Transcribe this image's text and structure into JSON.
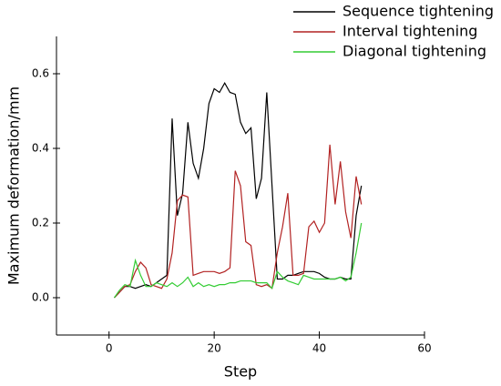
{
  "chart_data": {
    "type": "line",
    "xlabel": "Step",
    "ylabel": "Maximum deformation/mm",
    "x": [
      1,
      2,
      3,
      4,
      5,
      6,
      7,
      8,
      9,
      10,
      11,
      12,
      13,
      14,
      15,
      16,
      17,
      18,
      19,
      20,
      21,
      22,
      23,
      24,
      25,
      26,
      27,
      28,
      29,
      30,
      31,
      32,
      33,
      34,
      35,
      36,
      37,
      38,
      39,
      40,
      41,
      42,
      43,
      44,
      45,
      46,
      47,
      48
    ],
    "series": [
      {
        "name": "Sequence tightening",
        "color": "#000000",
        "values": [
          0,
          0.015,
          0.03,
          0.03,
          0.025,
          0.03,
          0.035,
          0.03,
          0.04,
          0.05,
          0.06,
          0.48,
          0.22,
          0.28,
          0.47,
          0.36,
          0.32,
          0.4,
          0.52,
          0.56,
          0.55,
          0.575,
          0.55,
          0.545,
          0.47,
          0.44,
          0.455,
          0.265,
          0.32,
          0.55,
          0.3,
          0.05,
          0.05,
          0.06,
          0.06,
          0.065,
          0.07,
          0.07,
          0.07,
          0.065,
          0.055,
          0.05,
          0.05,
          0.055,
          0.05,
          0.05,
          0.22,
          0.3
        ]
      },
      {
        "name": "Interval tightening",
        "color": "#b22222",
        "values": [
          0,
          0.015,
          0.03,
          0.035,
          0.07,
          0.095,
          0.08,
          0.035,
          0.03,
          0.025,
          0.05,
          0.12,
          0.26,
          0.275,
          0.27,
          0.06,
          0.065,
          0.07,
          0.07,
          0.07,
          0.065,
          0.07,
          0.08,
          0.34,
          0.3,
          0.15,
          0.14,
          0.035,
          0.03,
          0.035,
          0.025,
          0.12,
          0.19,
          0.28,
          0.06,
          0.06,
          0.065,
          0.19,
          0.205,
          0.175,
          0.2,
          0.41,
          0.25,
          0.365,
          0.23,
          0.16,
          0.325,
          0.25
        ]
      },
      {
        "name": "Diagonal tightening",
        "color": "#33cc33",
        "values": [
          0,
          0.02,
          0.035,
          0.03,
          0.1,
          0.06,
          0.03,
          0.03,
          0.04,
          0.035,
          0.03,
          0.04,
          0.03,
          0.04,
          0.055,
          0.03,
          0.04,
          0.03,
          0.035,
          0.03,
          0.035,
          0.035,
          0.04,
          0.04,
          0.045,
          0.045,
          0.045,
          0.04,
          0.04,
          0.04,
          0.025,
          0.07,
          0.055,
          0.045,
          0.04,
          0.035,
          0.06,
          0.055,
          0.05,
          0.05,
          0.05,
          0.05,
          0.05,
          0.055,
          0.045,
          0.055,
          0.12,
          0.2
        ]
      }
    ],
    "xlim": [
      -10,
      60
    ],
    "xticks": [
      0,
      20,
      40,
      60
    ],
    "ylim": [
      -0.1,
      0.7
    ],
    "yticks": [
      {
        "value": 0,
        "label": "0.0"
      },
      0.2,
      0.4,
      0.6
    ],
    "legend": "upper right"
  }
}
